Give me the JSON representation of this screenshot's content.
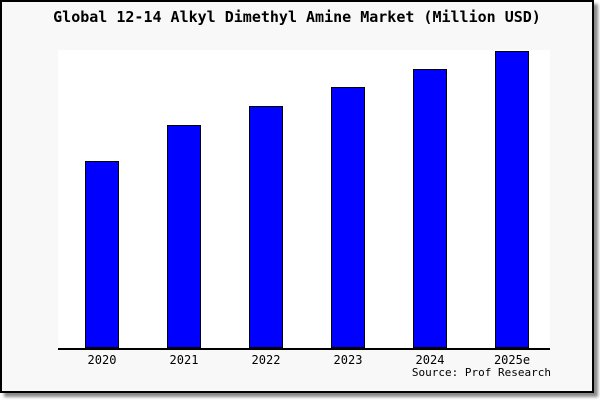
{
  "title": "Global 12-14 Alkyl Dimethyl Amine Market (Million USD)",
  "source": "Source: Prof Research",
  "colors": {
    "bar_fill": "#0000ff",
    "bar_border": "#000000",
    "panel_background": "#f8f8f8",
    "plot_background": "#ffffff",
    "axis_line": "#000000",
    "frame_border": "#000000"
  },
  "chart_data": {
    "type": "bar",
    "title": "Global 12-14 Alkyl Dimethyl Amine Market (Million USD)",
    "categories": [
      "2020",
      "2021",
      "2022",
      "2023",
      "2024",
      "2025e"
    ],
    "values": [
      188,
      224,
      244,
      263,
      281,
      299
    ],
    "xlabel": "",
    "ylabel": "",
    "ylim": [
      0,
      300
    ],
    "value_note": "no y-axis shown; values estimated in relative units from bar heights",
    "grid": false,
    "legend": "none",
    "source": "Source: Prof Research"
  }
}
